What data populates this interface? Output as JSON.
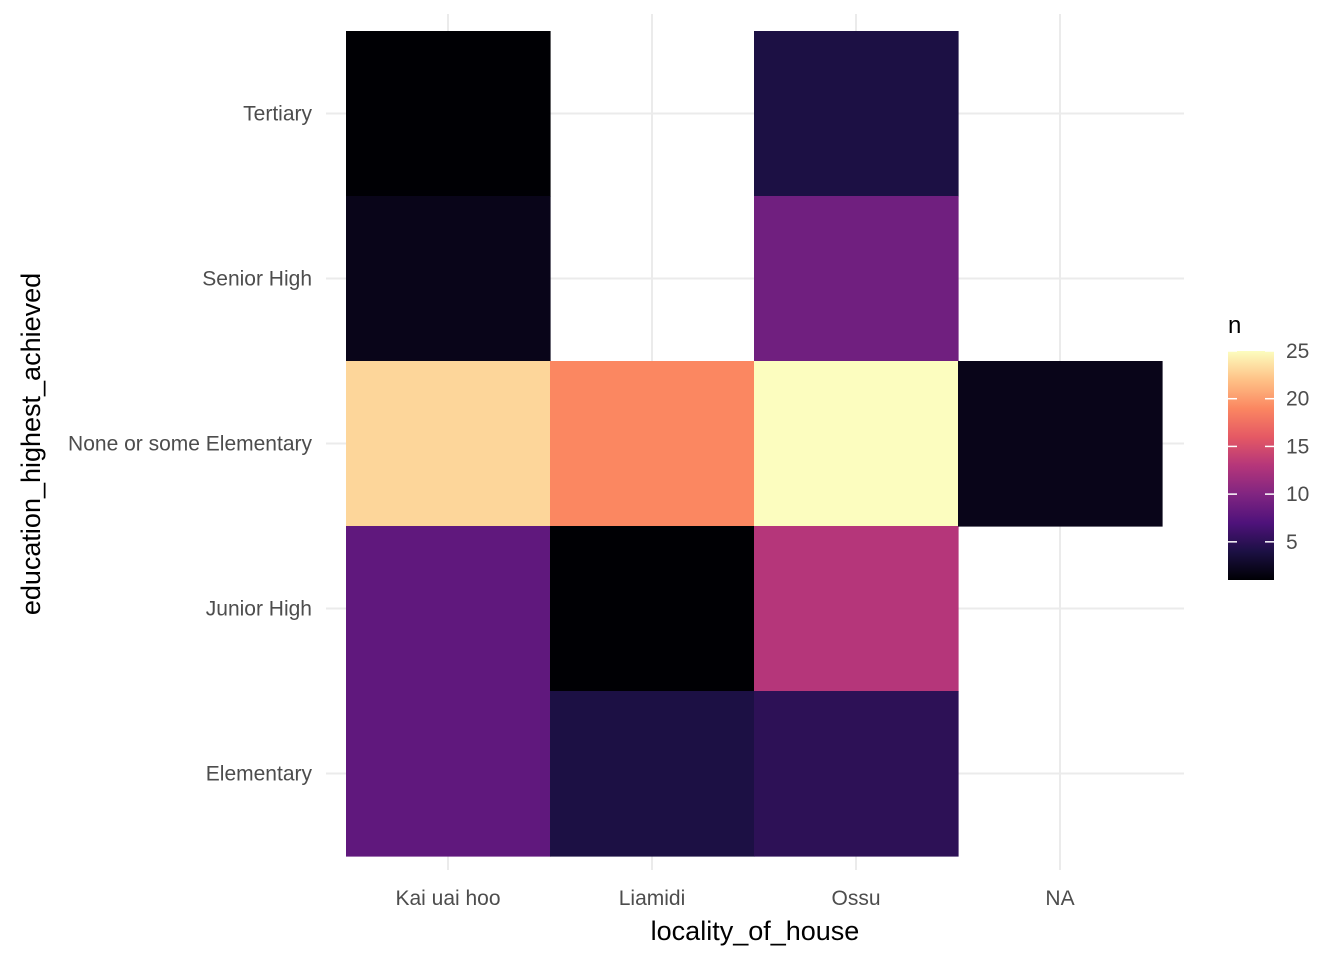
{
  "chart_data": {
    "type": "heatmap",
    "xlabel": "locality_of_house",
    "ylabel": "education_highest_achieved",
    "x_categories": [
      "Kai uai hoo",
      "Liamidi",
      "Ossu",
      "NA"
    ],
    "y_categories": [
      "Elementary",
      "Junior High",
      "None or some Elementary",
      "Senior High",
      "Tertiary"
    ],
    "cells": [
      {
        "x": "Kai uai hoo",
        "y": "Tertiary",
        "value": 1
      },
      {
        "x": "Kai uai hoo",
        "y": "Senior High",
        "value": 2
      },
      {
        "x": "Kai uai hoo",
        "y": "None or some Elementary",
        "value": 23
      },
      {
        "x": "Kai uai hoo",
        "y": "Junior High",
        "value": 8
      },
      {
        "x": "Kai uai hoo",
        "y": "Elementary",
        "value": 8
      },
      {
        "x": "Liamidi",
        "y": "None or some Elementary",
        "value": 19
      },
      {
        "x": "Liamidi",
        "y": "Junior High",
        "value": 1
      },
      {
        "x": "Liamidi",
        "y": "Elementary",
        "value": 4
      },
      {
        "x": "Ossu",
        "y": "Tertiary",
        "value": 4
      },
      {
        "x": "Ossu",
        "y": "Senior High",
        "value": 9
      },
      {
        "x": "Ossu",
        "y": "None or some Elementary",
        "value": 25
      },
      {
        "x": "Ossu",
        "y": "Junior High",
        "value": 13
      },
      {
        "x": "Ossu",
        "y": "Elementary",
        "value": 5
      },
      {
        "x": "NA",
        "y": "None or some Elementary",
        "value": 2
      }
    ],
    "legend": {
      "title": "n",
      "placement": "right",
      "range": [
        1,
        25
      ],
      "ticks": [
        5,
        10,
        15,
        20,
        25
      ],
      "tick_labels": [
        "5",
        "10",
        "15",
        "20",
        "25"
      ]
    },
    "colormap": "magma",
    "colors": [
      "#000004",
      "#1c1044",
      "#4f127b",
      "#812581",
      "#b5367a",
      "#e55964",
      "#fb8761",
      "#fec287",
      "#fcfdbf"
    ],
    "grid": true
  }
}
